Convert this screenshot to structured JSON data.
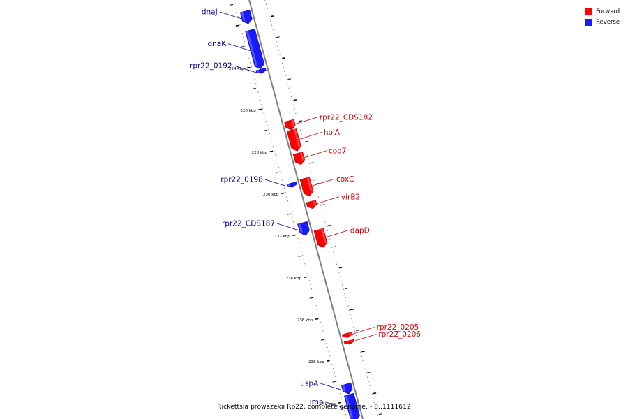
{
  "legend": {
    "forward": {
      "label": "Forward",
      "color": "#ff0000"
    },
    "reverse": {
      "label": "Reverse",
      "color": "#1a1aff"
    }
  },
  "caption": "Rickettsia prowazekii Rp22, complete genome. - 0..1111612",
  "colors": {
    "forward": "#ff0000",
    "forward_dark": "#b30000",
    "reverse": "#1a1aff",
    "reverse_dark": "#0000a0",
    "backbone": "#7f7f7f",
    "forward_label": "#cc0000",
    "reverse_label": "#000099"
  },
  "ticks": [
    {
      "kbp": 224,
      "label": "224 kbp"
    },
    {
      "kbp": 226,
      "label": "226 kbp"
    },
    {
      "kbp": 228,
      "label": "228 kbp"
    },
    {
      "kbp": 230,
      "label": "230 kbp"
    },
    {
      "kbp": 232,
      "label": "232 kbp"
    },
    {
      "kbp": 234,
      "label": "234 kbp"
    },
    {
      "kbp": 236,
      "label": "236 kbp"
    },
    {
      "kbp": 238,
      "label": "238 kbp"
    },
    {
      "kbp": 240,
      "label": "240 kbp"
    }
  ],
  "genes": [
    {
      "name": "dnaJ",
      "strand": "reverse",
      "start_kbp": 221.45,
      "end_kbp": 222.05
    },
    {
      "name": "dnaK",
      "strand": "reverse",
      "start_kbp": 222.35,
      "end_kbp": 224.2
    },
    {
      "name": "rpr22_0192",
      "strand": "reverse",
      "start_kbp": 224.22,
      "end_kbp": 224.42
    },
    {
      "name": "rpr22_CDS182",
      "strand": "forward",
      "start_kbp": 226.85,
      "end_kbp": 227.3
    },
    {
      "name": "holA",
      "strand": "forward",
      "start_kbp": 227.3,
      "end_kbp": 228.3
    },
    {
      "name": "coq7",
      "strand": "forward",
      "start_kbp": 228.4,
      "end_kbp": 228.95
    },
    {
      "name": "rpr22_0198",
      "strand": "reverse",
      "start_kbp": 229.65,
      "end_kbp": 229.85
    },
    {
      "name": "coxC",
      "strand": "forward",
      "start_kbp": 229.6,
      "end_kbp": 230.45
    },
    {
      "name": "virB2",
      "strand": "forward",
      "start_kbp": 230.7,
      "end_kbp": 231.05
    },
    {
      "name": "rpr22_CDS187",
      "strand": "reverse",
      "start_kbp": 231.55,
      "end_kbp": 232.15
    },
    {
      "name": "dapD",
      "strand": "forward",
      "start_kbp": 232.05,
      "end_kbp": 232.9
    },
    {
      "name": "rpr22_0205",
      "strand": "forward",
      "start_kbp": 237.0,
      "end_kbp": 237.2
    },
    {
      "name": "rpr22_0206",
      "strand": "forward",
      "start_kbp": 237.35,
      "end_kbp": 237.52
    },
    {
      "name": "uspA",
      "strand": "reverse",
      "start_kbp": 239.25,
      "end_kbp": 239.72
    },
    {
      "name": "imp",
      "strand": "reverse",
      "start_kbp": 239.75,
      "end_kbp": 241.0
    }
  ]
}
